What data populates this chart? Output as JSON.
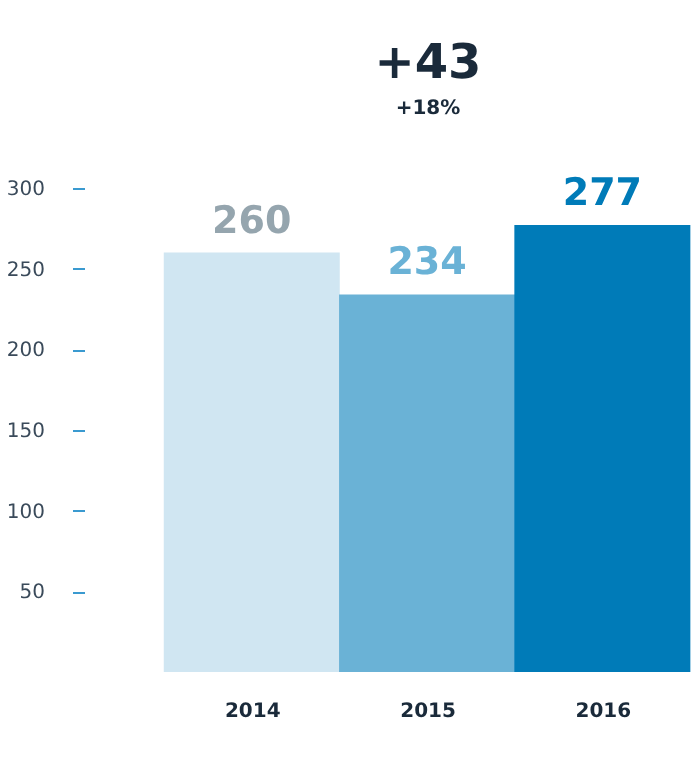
{
  "chart_data": {
    "type": "bar",
    "categories": [
      "2014",
      "2015",
      "2016"
    ],
    "values": [
      260,
      234,
      277
    ],
    "colors": [
      "#d0e6f2",
      "#6ab2d6",
      "#007bb8"
    ],
    "ylim": [
      0,
      300
    ],
    "yticks": [
      50,
      100,
      150,
      200,
      250,
      300
    ],
    "grid": false,
    "data_labels": true,
    "annotations": [
      "+43",
      "+18%"
    ]
  }
}
